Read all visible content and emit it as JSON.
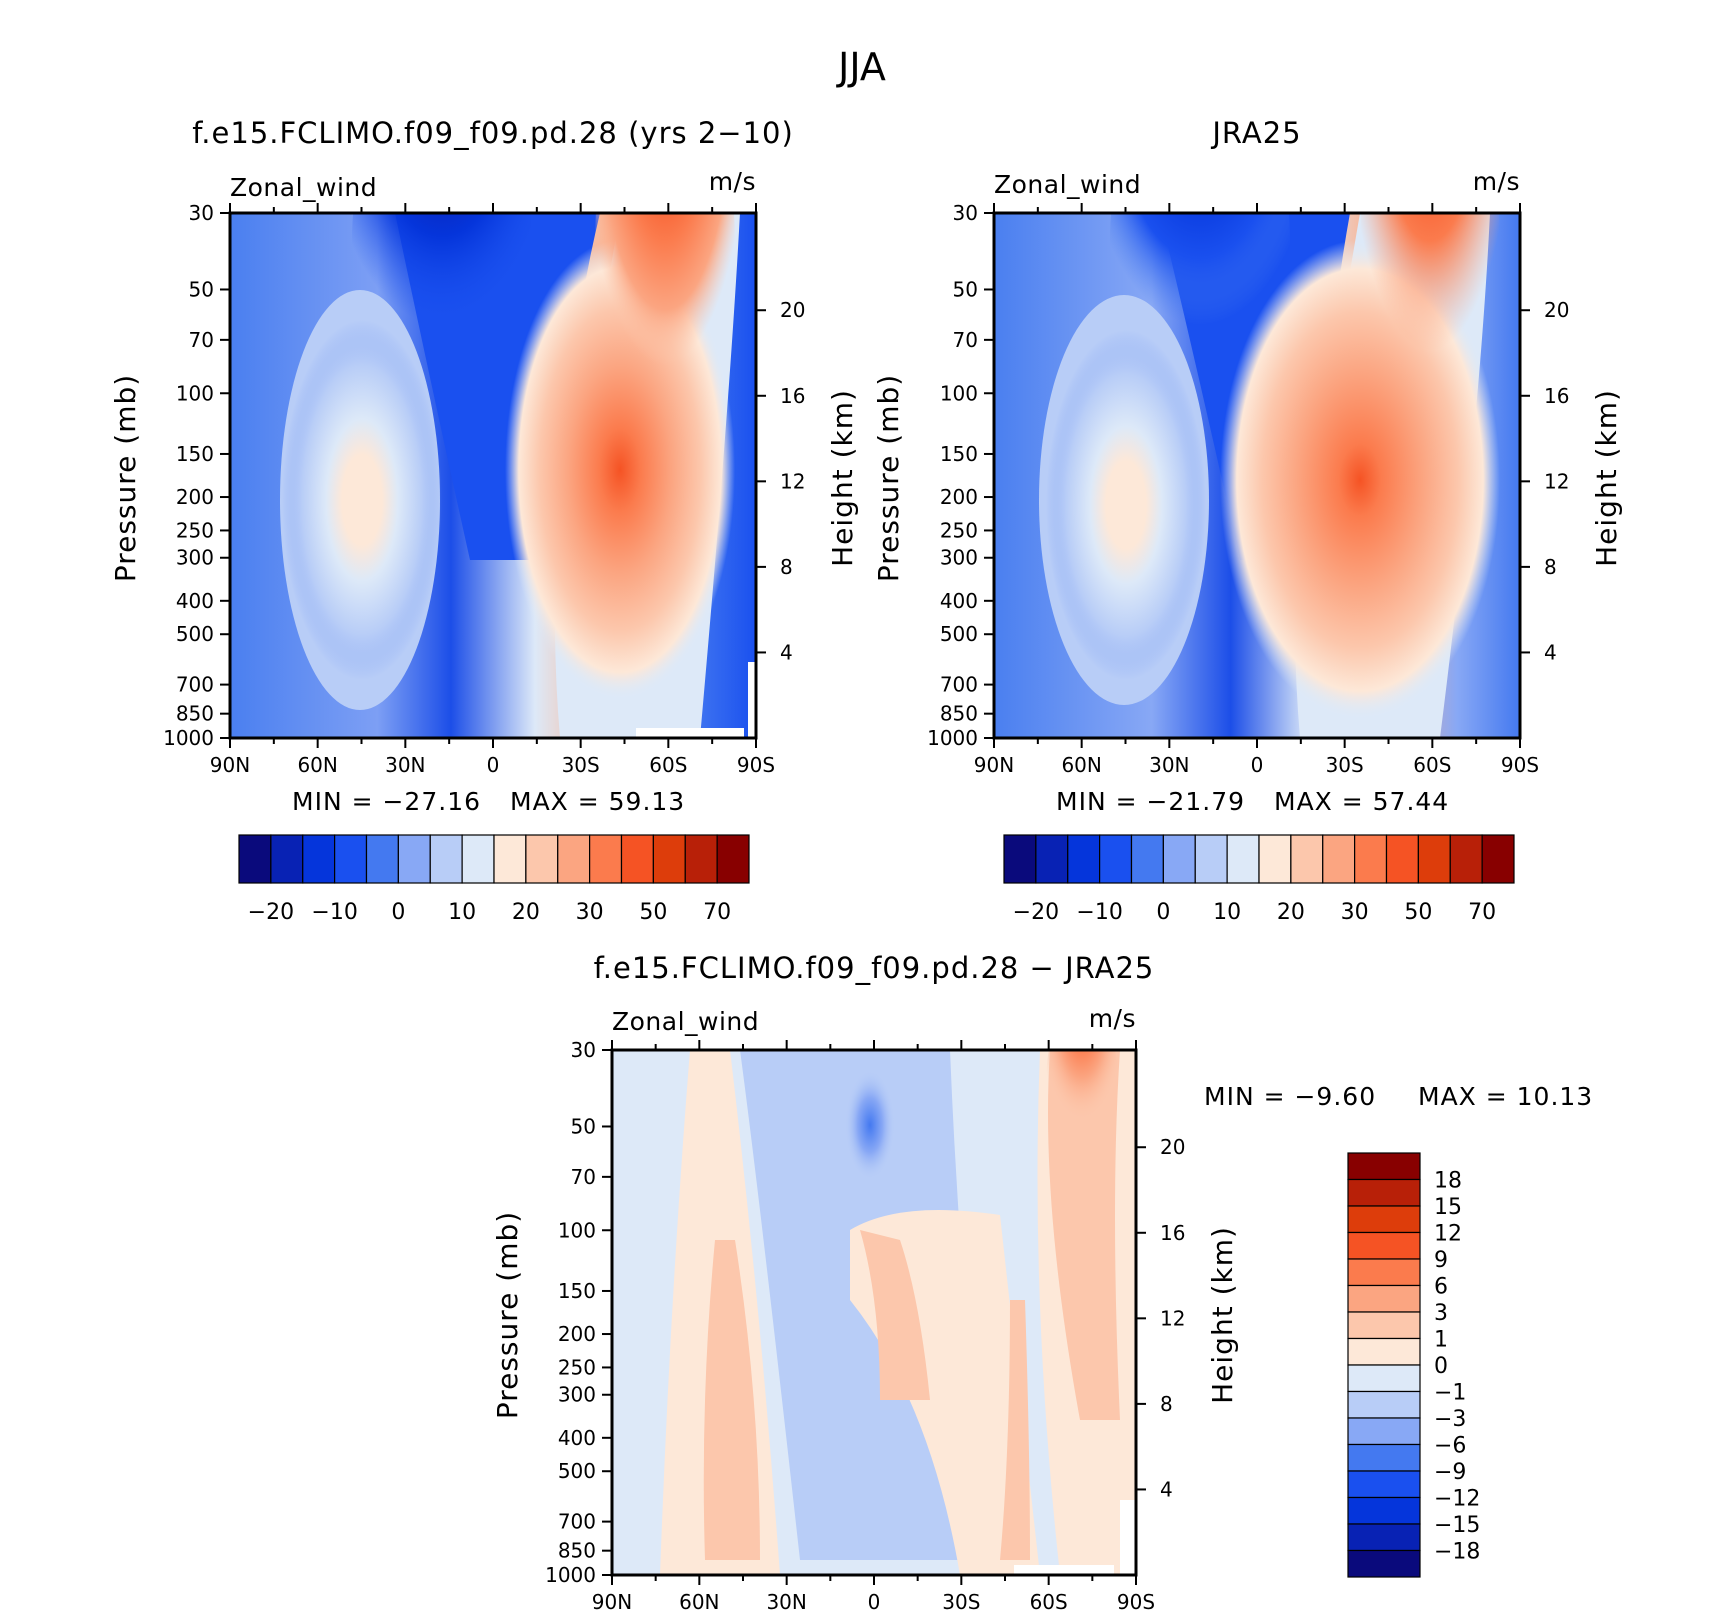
{
  "chart_data": {
    "title": "JJA",
    "panels": [
      {
        "type": "contour",
        "title": "f.e15.FCLIMO.f09_f09.pd.28 (yrs 2−10)",
        "field_label": "Zonal_wind",
        "units": "m/s",
        "ylabel": "Pressure (mb)",
        "ylabel_right": "Height (km)",
        "min_text": "MIN = −27.16",
        "max_text": "MAX =  59.13",
        "min": -27.16,
        "max": 59.13,
        "features": [
          {
            "lat": -45,
            "p": 190,
            "value": 59.13
          },
          {
            "lat": -65,
            "p": 40,
            "value": 45
          },
          {
            "lat": 19,
            "p": 40,
            "value": -27.16
          },
          {
            "lat": 45,
            "p": 200,
            "value": 18
          }
        ]
      },
      {
        "type": "contour",
        "title": "JRA25",
        "field_label": "Zonal_wind",
        "units": "m/s",
        "ylabel": "Pressure (mb)",
        "ylabel_right": "Height (km)",
        "min_text": "MIN = −21.79",
        "max_text": "MAX =  57.44",
        "min": -21.79,
        "max": 57.44,
        "features": [
          {
            "lat": -30,
            "p": 200,
            "value": 57.44
          },
          {
            "lat": -60,
            "p": 40,
            "value": 45
          },
          {
            "lat": 16,
            "p": 40,
            "value": -21.79
          },
          {
            "lat": 45,
            "p": 200,
            "value": 17
          }
        ]
      },
      {
        "type": "contour",
        "title": "f.e15.FCLIMO.f09_f09.pd.28 − JRA25",
        "field_label": "Zonal_wind",
        "units": "m/s",
        "ylabel": "Pressure (mb)",
        "ylabel_right": "Height (km)",
        "min_text": "MIN =  −9.60",
        "max_text": "MAX =  10.13",
        "min": -9.6,
        "max": 10.13,
        "features": [
          {
            "lat": -71,
            "p": 35,
            "value": 10.13
          },
          {
            "lat": 0,
            "p": 60,
            "value": -9.6
          },
          {
            "lat": 48,
            "p": 300,
            "value": 3
          },
          {
            "lat": -20,
            "p": 200,
            "value": 3
          }
        ]
      }
    ],
    "x_ticks": [
      "90N",
      "60N",
      "30N",
      "0",
      "30S",
      "60S",
      "90S"
    ],
    "pressure_ticks": [
      "30",
      "50",
      "70",
      "100",
      "150",
      "200",
      "250",
      "300",
      "400",
      "500",
      "700",
      "850",
      "1000"
    ],
    "height_ticks": [
      "20",
      "16",
      "12",
      "8",
      "4"
    ],
    "colorbar_main": {
      "labels": [
        "−20",
        "−10",
        "0",
        "10",
        "20",
        "30",
        "50",
        "70"
      ],
      "colors": [
        "#0a0a7c",
        "#0822b4",
        "#0535db",
        "#1a50ef",
        "#4479f0",
        "#88a8f5",
        "#b8cdf7",
        "#dde9f8",
        "#fde8d8",
        "#fcc7ac",
        "#fba581",
        "#fb7b4d",
        "#f55324",
        "#dd3d0b",
        "#b82008",
        "#880000"
      ]
    },
    "colorbar_diff": {
      "labels": [
        "18",
        "15",
        "12",
        "9",
        "6",
        "3",
        "1",
        "0",
        "−1",
        "−3",
        "−6",
        "−9",
        "−12",
        "−15",
        "−18"
      ],
      "colors": [
        "#880000",
        "#b82008",
        "#dd3d0b",
        "#f55324",
        "#fb7b4d",
        "#fba581",
        "#fcc7ac",
        "#fde8d8",
        "#dde9f8",
        "#b8cdf7",
        "#88a8f5",
        "#4479f0",
        "#1a50ef",
        "#0535db",
        "#0822b4",
        "#0a0a7c"
      ]
    }
  }
}
